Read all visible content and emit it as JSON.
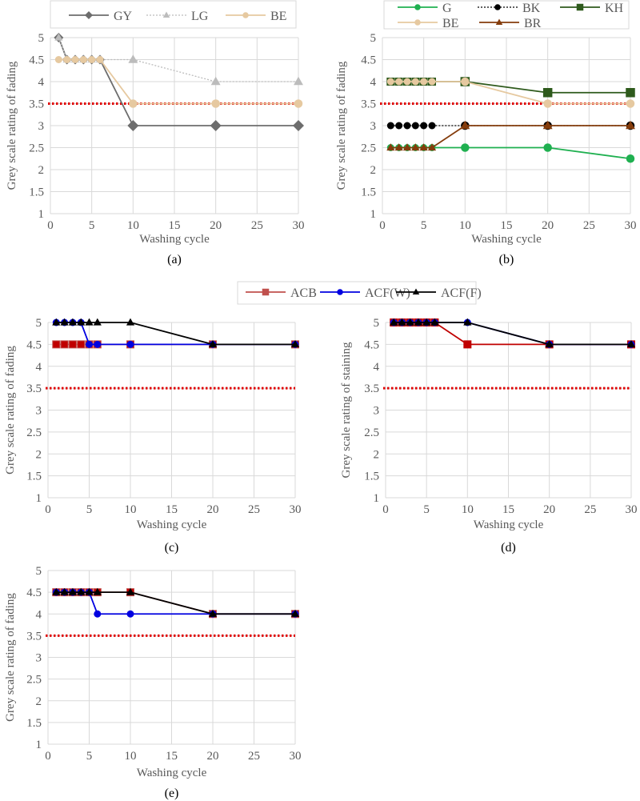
{
  "shared_legend": {
    "entries": [
      {
        "name": "ACB",
        "color": "#c0504d",
        "marker": "square"
      },
      {
        "name": "ACF(W)",
        "color": "#0000e0",
        "marker": "circle"
      },
      {
        "name": "ACF(F)",
        "color": "#000000",
        "marker": "triangle"
      }
    ]
  },
  "chart_data": [
    {
      "type": "line",
      "caption": "(a)",
      "xlabel": "Washing cycle",
      "ylabel": "Grey scale rating of fading",
      "xlim": [
        0,
        30
      ],
      "ylim": [
        1,
        5
      ],
      "xticks": [
        0,
        5,
        10,
        15,
        20,
        25,
        30
      ],
      "yticks": [
        1,
        1.5,
        2,
        2.5,
        3,
        3.5,
        4,
        4.5,
        5
      ],
      "grid": true,
      "legend": "top",
      "reference_line": {
        "y": 3.5,
        "color": "#e00000",
        "style": "dotted"
      },
      "x": [
        1,
        2,
        3,
        4,
        5,
        6,
        10,
        20,
        30
      ],
      "series": [
        {
          "name": "GY",
          "color": "#6d6d6d",
          "marker": "diamond",
          "dash": false,
          "values": [
            5,
            4.5,
            4.5,
            4.5,
            4.5,
            4.5,
            3,
            3,
            3
          ]
        },
        {
          "name": "LG",
          "color": "#bcbcbc",
          "marker": "triangle",
          "dash": true,
          "values": [
            5,
            4.5,
            4.5,
            4.5,
            4.5,
            4.5,
            4.5,
            4,
            4
          ]
        },
        {
          "name": "BE",
          "color": "#e6c9a0",
          "marker": "circle",
          "dash": false,
          "values": [
            4.5,
            4.5,
            4.5,
            4.5,
            4.5,
            4.5,
            3.5,
            3.5,
            3.5
          ]
        }
      ]
    },
    {
      "type": "line",
      "caption": "(b)",
      "xlabel": "Washing cycle",
      "ylabel": "Grey scale rating of fading",
      "xlim": [
        0,
        30
      ],
      "ylim": [
        1,
        5
      ],
      "xticks": [
        0,
        5,
        10,
        15,
        20,
        25,
        30
      ],
      "yticks": [
        1,
        1.5,
        2,
        2.5,
        3,
        3.5,
        4,
        4.5,
        5
      ],
      "grid": true,
      "legend": "top",
      "reference_line": {
        "y": 3.5,
        "color": "#e00000",
        "style": "dotted"
      },
      "x": [
        1,
        2,
        3,
        4,
        5,
        6,
        10,
        20,
        30
      ],
      "series": [
        {
          "name": "G",
          "color": "#1fb050",
          "marker": "circle",
          "dash": false,
          "values": [
            2.5,
            2.5,
            2.5,
            2.5,
            2.5,
            2.5,
            2.5,
            2.5,
            2.25
          ]
        },
        {
          "name": "BK",
          "color": "#000000",
          "marker": "circle",
          "dash": true,
          "values": [
            3,
            3,
            3,
            3,
            3,
            3,
            3,
            3,
            3
          ]
        },
        {
          "name": "KH",
          "color": "#2e5a1c",
          "marker": "square",
          "dash": false,
          "values": [
            4,
            4,
            4,
            4,
            4,
            4,
            4,
            3.75,
            3.75
          ]
        },
        {
          "name": "BE",
          "color": "#e6c9a0",
          "marker": "circle",
          "dash": false,
          "values": [
            4,
            4,
            4,
            4,
            4,
            4,
            4,
            3.5,
            3.5
          ]
        },
        {
          "name": "BR",
          "color": "#843c0c",
          "marker": "triangle",
          "dash": false,
          "values": [
            2.5,
            2.5,
            2.5,
            2.5,
            2.5,
            2.5,
            3,
            3,
            3
          ]
        }
      ]
    },
    {
      "type": "line",
      "caption": "(c)",
      "xlabel": "Washing cycle",
      "ylabel": "Grey scale rating of fading",
      "xlim": [
        0,
        30
      ],
      "ylim": [
        1,
        5
      ],
      "xticks": [
        0,
        5,
        10,
        15,
        20,
        25,
        30
      ],
      "yticks": [
        1,
        1.5,
        2,
        2.5,
        3,
        3.5,
        4,
        4.5,
        5
      ],
      "grid": true,
      "legend": "shared-top",
      "reference_line": {
        "y": 3.5,
        "color": "#e00000",
        "style": "dotted"
      },
      "x": [
        1,
        2,
        3,
        4,
        5,
        6,
        10,
        20,
        30
      ],
      "series": [
        {
          "name": "ACB",
          "color": "#c0504d",
          "fill": "#c00000",
          "marker": "square",
          "dash": false,
          "values": [
            4.5,
            4.5,
            4.5,
            4.5,
            4.5,
            4.5,
            4.5,
            4.5,
            4.5
          ]
        },
        {
          "name": "ACF(W)",
          "color": "#0000e0",
          "marker": "circle",
          "dash": false,
          "values": [
            5,
            5,
            5,
            5,
            4.5,
            4.5,
            4.5,
            4.5,
            4.5
          ]
        },
        {
          "name": "ACF(F)",
          "color": "#000000",
          "marker": "triangle",
          "dash": false,
          "values": [
            5,
            5,
            5,
            5,
            5,
            5,
            5,
            4.5,
            4.5
          ]
        }
      ]
    },
    {
      "type": "line",
      "caption": "(d)",
      "xlabel": "Washing cycle",
      "ylabel": "Grey scale rating of staining",
      "xlim": [
        0,
        30
      ],
      "ylim": [
        1,
        5
      ],
      "xticks": [
        0,
        5,
        10,
        15,
        20,
        25,
        30
      ],
      "yticks": [
        1,
        1.5,
        2,
        2.5,
        3,
        3.5,
        4,
        4.5,
        5
      ],
      "grid": true,
      "legend": "shared-top",
      "reference_line": {
        "y": 3.5,
        "color": "#e00000",
        "style": "dotted"
      },
      "x": [
        1,
        2,
        3,
        4,
        5,
        6,
        10,
        20,
        30
      ],
      "series": [
        {
          "name": "ACB",
          "color": "#c00000",
          "fill": "#c00000",
          "marker": "square",
          "dash": false,
          "values": [
            5,
            5,
            5,
            5,
            5,
            5,
            4.5,
            4.5,
            4.5
          ]
        },
        {
          "name": "ACF(W)",
          "color": "#0000e0",
          "marker": "circle",
          "dash": false,
          "values": [
            5,
            5,
            5,
            5,
            5,
            5,
            5,
            4.5,
            4.5
          ]
        },
        {
          "name": "ACF(F)",
          "color": "#000000",
          "marker": "triangle",
          "dash": false,
          "values": [
            5,
            5,
            5,
            5,
            5,
            5,
            5,
            4.5,
            4.5
          ]
        }
      ]
    },
    {
      "type": "line",
      "caption": "(e)",
      "xlabel": "Washing cycle",
      "ylabel": "Grey scale rating of fading",
      "xlim": [
        0,
        30
      ],
      "ylim": [
        1,
        5
      ],
      "xticks": [
        0,
        5,
        10,
        15,
        20,
        25,
        30
      ],
      "yticks": [
        1,
        1.5,
        2,
        2.5,
        3,
        3.5,
        4,
        4.5,
        5
      ],
      "grid": true,
      "legend": "shared-top",
      "reference_line": {
        "y": 3.5,
        "color": "#e00000",
        "style": "dotted"
      },
      "x": [
        1,
        2,
        3,
        4,
        5,
        6,
        10,
        20,
        30
      ],
      "series": [
        {
          "name": "ACB",
          "color": "#c0504d",
          "fill": "#c00000",
          "marker": "square",
          "dash": false,
          "values": [
            4.5,
            4.5,
            4.5,
            4.5,
            4.5,
            4.5,
            4.5,
            4,
            4
          ]
        },
        {
          "name": "ACF(W)",
          "color": "#0000e0",
          "marker": "circle",
          "dash": false,
          "values": [
            4.5,
            4.5,
            4.5,
            4.5,
            4.5,
            4,
            4,
            4,
            4
          ]
        },
        {
          "name": "ACF(F)",
          "color": "#000000",
          "marker": "triangle",
          "dash": false,
          "values": [
            4.5,
            4.5,
            4.5,
            4.5,
            4.5,
            4.5,
            4.5,
            4,
            4
          ]
        }
      ]
    }
  ]
}
